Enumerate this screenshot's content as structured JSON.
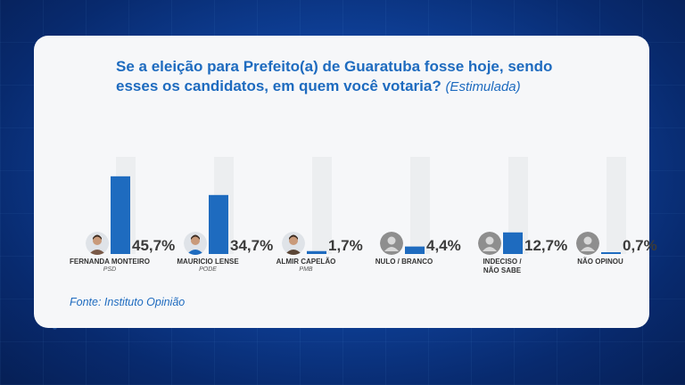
{
  "title_main": "Se a eleição para Prefeito(a) de Guaratuba fosse hoje, sendo esses os candidatos, em quem você votaria?",
  "title_sub": "(Estimulada)",
  "source": "Fonte: Instituto Opinião",
  "colors": {
    "bar": "#1e6bbf",
    "track": "#eceef0",
    "text_accent": "#1e6bbf"
  },
  "chart_data": {
    "type": "bar",
    "categories": [
      "FERNANDA MONTEIRO",
      "MAURICIO LENSE",
      "ALMIR CAPELÃO",
      "NULO / BRANCO",
      "INDECISO / NÃO SABE",
      "NÃO OPINOU"
    ],
    "parties": [
      "PSD",
      "PODE",
      "PMB",
      "",
      "",
      ""
    ],
    "values": [
      45.7,
      34.7,
      1.7,
      4.4,
      12.7,
      0.7
    ],
    "labels": [
      "45,7%",
      "34,7%",
      "1,7%",
      "4,4%",
      "12,7%",
      "0,7%"
    ],
    "avatars": [
      "photo",
      "photo",
      "photo",
      "generic-person-icon",
      "generic-person-icon",
      "generic-person-icon"
    ],
    "ylim": [
      0,
      60
    ],
    "grid": false,
    "title": "Se a eleição para Prefeito(a) de Guaratuba fosse hoje, sendo esses os candidatos, em quem você votaria? (Estimulada)"
  }
}
